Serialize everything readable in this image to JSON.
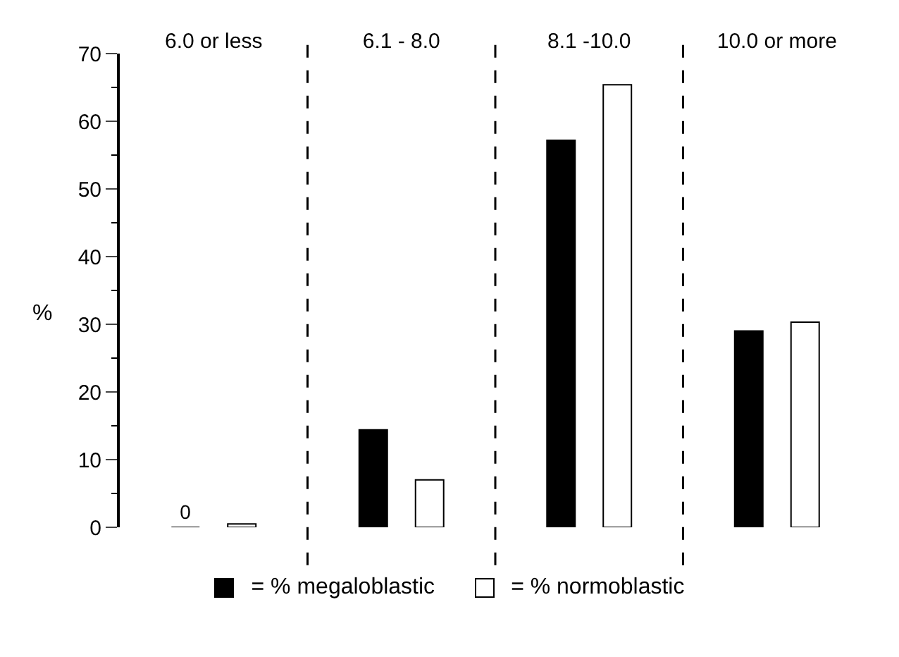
{
  "chart_data": {
    "type": "bar",
    "ylabel": "%",
    "categories": [
      "6.0 or less",
      "6.1 - 8.0",
      "8.1 -10.0",
      "10.0 or more"
    ],
    "series": [
      {
        "name": "= % megaloblastic",
        "color": "#000000",
        "values": [
          0,
          14.4,
          57.2,
          29
        ],
        "value_labels": [
          "0",
          null,
          null,
          null
        ]
      },
      {
        "name": "= % normoblastic",
        "color": "#ffffff",
        "values": [
          0.5,
          7,
          65.4,
          30.3
        ]
      }
    ],
    "ylim": [
      0,
      70
    ],
    "yticks": [
      0,
      10,
      20,
      30,
      40,
      50,
      60,
      70
    ],
    "grid": "x",
    "legend": "bottom"
  }
}
